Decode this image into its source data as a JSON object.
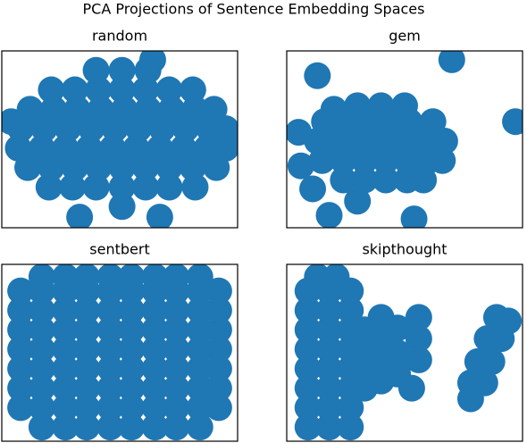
{
  "title": "PCA Projections of Sentence Embedding Spaces",
  "chart_data": [
    {
      "type": "scatter",
      "title": "random",
      "color": "#1f77b4",
      "xlim": [
        0,
        100
      ],
      "ylim": [
        0,
        100
      ],
      "x": [
        51,
        20,
        30,
        40,
        51,
        61,
        71,
        82,
        11,
        21,
        31,
        41,
        51,
        61,
        71,
        81,
        91,
        7,
        17,
        27,
        37,
        47,
        57,
        67,
        77,
        87,
        95,
        8,
        18,
        28,
        38,
        48,
        58,
        68,
        78,
        88,
        95,
        12,
        22,
        32,
        42,
        52,
        62,
        72,
        82,
        90,
        21,
        31,
        41,
        51,
        61,
        71,
        81,
        40,
        51,
        62,
        4,
        97,
        64,
        33,
        67
      ],
      "y": [
        12,
        23,
        23,
        23,
        23,
        23,
        23,
        23,
        34,
        34,
        34,
        34,
        34,
        34,
        34,
        34,
        34,
        45,
        45,
        45,
        45,
        45,
        45,
        45,
        45,
        45,
        45,
        56,
        56,
        56,
        56,
        56,
        56,
        56,
        56,
        56,
        56,
        67,
        67,
        67,
        67,
        67,
        67,
        67,
        67,
        67,
        78,
        78,
        78,
        78,
        78,
        78,
        78,
        89,
        89,
        89,
        60,
        48,
        95,
        6,
        6
      ]
    },
    {
      "type": "scatter",
      "title": "gem",
      "color": "#1f77b4",
      "xlim": [
        0,
        100
      ],
      "ylim": [
        0,
        100
      ],
      "x": [
        24,
        33,
        42,
        51,
        58,
        15,
        24,
        33,
        42,
        51,
        60,
        66,
        13,
        22,
        31,
        40,
        49,
        58,
        67,
        16,
        25,
        34,
        43,
        52,
        62,
        30,
        40,
        50,
        70,
        97,
        5,
        6,
        11,
        18,
        54,
        30,
        13,
        20
      ],
      "y": [
        27,
        27,
        27,
        27,
        27,
        38,
        38,
        38,
        38,
        38,
        38,
        38,
        49,
        49,
        49,
        49,
        49,
        49,
        49,
        60,
        60,
        60,
        60,
        60,
        60,
        69,
        69,
        69,
        95,
        60,
        54,
        35,
        22,
        7,
        5,
        15,
        86,
        67
      ]
    },
    {
      "type": "scatter",
      "title": "sentbert",
      "color": "#1f77b4",
      "xlim": [
        0,
        100
      ],
      "ylim": [
        0,
        100
      ],
      "x": [
        17,
        27,
        36,
        46,
        55,
        65,
        74,
        84,
        8,
        17,
        27,
        36,
        46,
        55,
        65,
        74,
        84,
        92,
        8,
        17,
        27,
        36,
        46,
        55,
        65,
        74,
        84,
        92,
        8,
        17,
        27,
        36,
        46,
        55,
        65,
        74,
        84,
        92,
        8,
        17,
        27,
        36,
        46,
        55,
        65,
        74,
        84,
        92,
        8,
        17,
        27,
        36,
        46,
        55,
        65,
        74,
        84,
        92,
        8,
        17,
        27,
        36,
        46,
        55,
        65,
        74,
        84,
        92,
        8,
        17,
        27,
        36,
        46,
        55,
        65,
        74,
        84,
        92,
        17,
        27,
        36,
        46,
        55,
        65,
        74,
        84
      ],
      "y": [
        8,
        8,
        8,
        8,
        8,
        8,
        8,
        8,
        19,
        19,
        19,
        19,
        19,
        19,
        19,
        19,
        19,
        19,
        30,
        30,
        30,
        30,
        30,
        30,
        30,
        30,
        30,
        30,
        41,
        41,
        41,
        41,
        41,
        41,
        41,
        41,
        41,
        41,
        52,
        52,
        52,
        52,
        52,
        52,
        52,
        52,
        52,
        52,
        63,
        63,
        63,
        63,
        63,
        63,
        63,
        63,
        63,
        63,
        74,
        74,
        74,
        74,
        74,
        74,
        74,
        74,
        74,
        74,
        85,
        85,
        85,
        85,
        85,
        85,
        85,
        85,
        85,
        85,
        93,
        93,
        93,
        93,
        93,
        93,
        93,
        93
      ]
    },
    {
      "type": "scatter",
      "title": "skipthought",
      "color": "#1f77b4",
      "xlim": [
        0,
        100
      ],
      "ylim": [
        0,
        100
      ],
      "x": [
        9,
        18,
        27,
        9,
        18,
        27,
        9,
        18,
        27,
        9,
        18,
        27,
        9,
        18,
        27,
        9,
        18,
        27,
        9,
        18,
        27,
        9,
        18,
        27,
        13,
        21,
        33,
        33,
        33,
        33,
        40,
        40,
        40,
        40,
        47,
        47,
        47,
        56,
        56,
        56,
        53,
        89,
        94,
        85,
        91,
        81,
        87,
        78,
        84,
        78
      ],
      "y": [
        8,
        8,
        8,
        19,
        19,
        19,
        30,
        30,
        30,
        41,
        41,
        41,
        52,
        52,
        52,
        63,
        63,
        63,
        74,
        74,
        74,
        85,
        85,
        85,
        93,
        93,
        30,
        41,
        52,
        63,
        70,
        58,
        46,
        34,
        64,
        50,
        38,
        70,
        58,
        46,
        30,
        70,
        68,
        58,
        58,
        45,
        45,
        33,
        33,
        24
      ]
    }
  ]
}
